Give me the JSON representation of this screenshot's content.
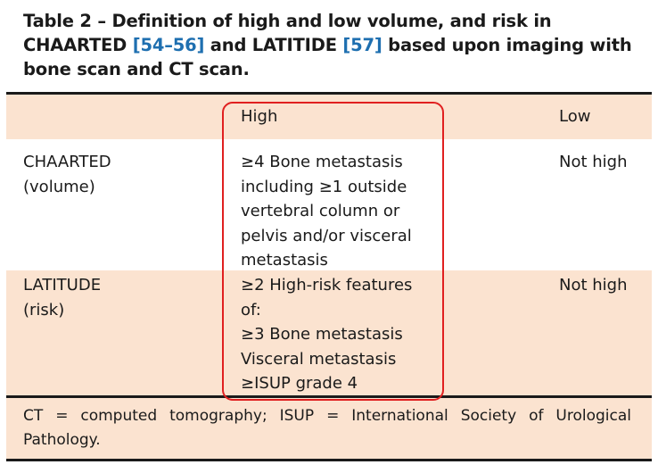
{
  "caption": {
    "prefix": "Table 2 – Definition of high and low volume, and risk in CHAARTED",
    "ref1": "[54–56]",
    "mid": " and LATITIDE ",
    "ref2": "[57]",
    "suffix": " based upon imaging with bone scan and CT scan."
  },
  "table": {
    "columns": [
      "",
      "High",
      "Low"
    ],
    "rows": [
      {
        "label": "CHAARTED\n(volume)",
        "high": "≥4 Bone metastasis\nincluding ≥1 outside\nvertebral column or\npelvis and/or visceral\nmetastasis",
        "low": "Not high"
      },
      {
        "label": "LATITUDE\n(risk)",
        "high": "≥2 High-risk features\nof:\n≥3 Bone metastasis\nVisceral metastasis\n≥ISUP grade 4",
        "low": "Not high"
      }
    ]
  },
  "footnote": {
    "line1": "CT = computed tomography; ISUP = International Society of Urological",
    "line2": "Pathology."
  },
  "colors": {
    "band": "#fbe3d0",
    "reference_link": "#1e6fb0",
    "highlight_box": "#e02020"
  }
}
